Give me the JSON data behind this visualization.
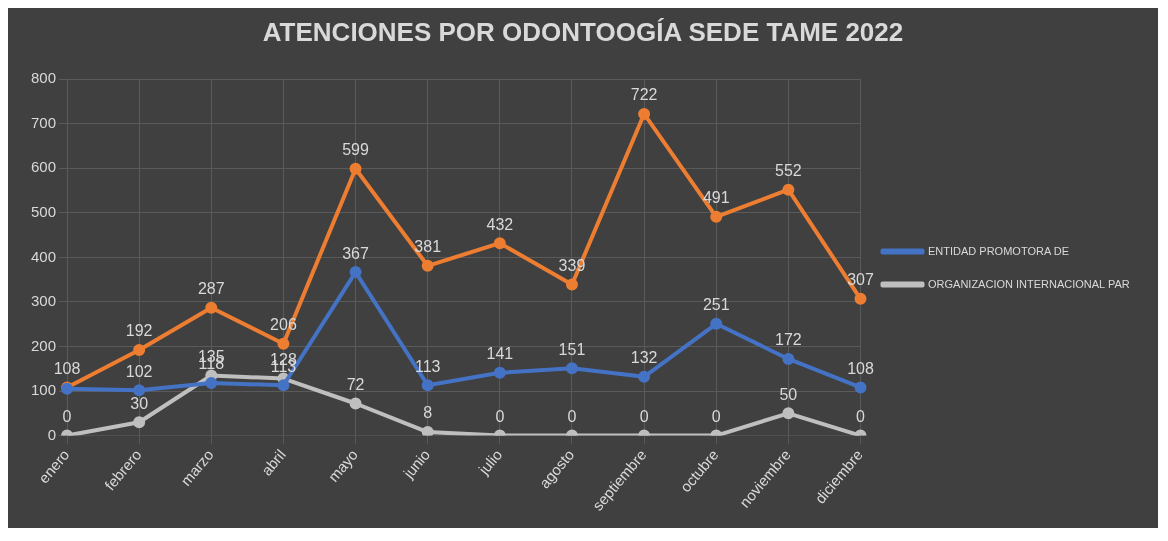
{
  "chart_data": {
    "type": "line",
    "title": "ATENCIONES POR ODONTOOGÍA SEDE TAME 2022",
    "categories": [
      "enero",
      "febrero",
      "marzo",
      "abril",
      "mayo",
      "junio",
      "julio",
      "agosto",
      "septiembre",
      "octubre",
      "noviembre",
      "diciembre"
    ],
    "series": [
      {
        "name": "ENTIDAD PROMOTORA DE",
        "color": "#4472c4",
        "values": [
          105,
          102,
          118,
          113,
          367,
          113,
          141,
          151,
          132,
          251,
          172,
          108
        ],
        "value_labels": [
          null,
          "102",
          "118",
          "113",
          "367",
          "113",
          "141",
          "151",
          "132",
          "251",
          "172",
          "108"
        ]
      },
      {
        "color": "#ed7d31",
        "values": [
          108,
          192,
          287,
          206,
          599,
          381,
          432,
          339,
          722,
          491,
          552,
          307
        ],
        "value_labels": [
          "108",
          "192",
          "287",
          "206",
          "599",
          "381",
          "432",
          "339",
          "722",
          "491",
          "552",
          "307"
        ]
      },
      {
        "name": "ORGANIZACION INTERNACIONAL PAR",
        "color": "#bfbfbf",
        "values": [
          0,
          30,
          135,
          128,
          72,
          8,
          0,
          0,
          0,
          0,
          50,
          0
        ],
        "value_labels": [
          "0",
          "30",
          "135",
          "128",
          "72",
          "8",
          "0",
          "0",
          "0",
          "0",
          "50",
          "0"
        ]
      }
    ],
    "ylim": [
      0,
      800
    ],
    "yticks": [
      0,
      100,
      200,
      300,
      400,
      500,
      600,
      700,
      800
    ],
    "grid": true,
    "legend": "right",
    "marker": "circle",
    "line_style": "solid"
  }
}
